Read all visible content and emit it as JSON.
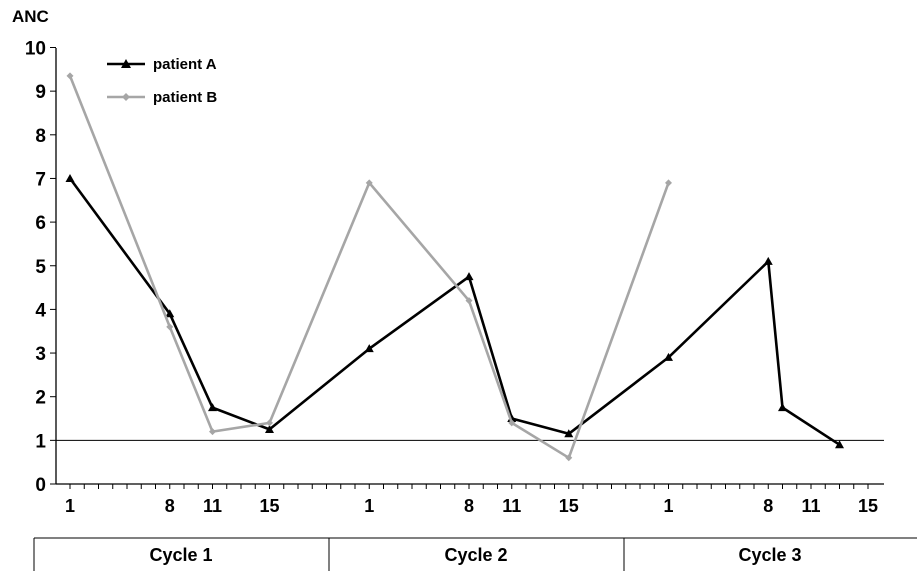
{
  "chart_data": {
    "type": "line",
    "ylabel": "ANC",
    "ylim": [
      0,
      10
    ],
    "yticks": [
      "0",
      "1",
      "2",
      "3",
      "4",
      "5",
      "6",
      "7",
      "8",
      "9",
      "10"
    ],
    "threshold": 1,
    "xtick_labels": [
      "1",
      "8",
      "11",
      "15",
      "1",
      "8",
      "11",
      "15",
      "1",
      "8",
      "11",
      "15"
    ],
    "xtick_days": [
      1,
      8,
      11,
      15,
      22,
      29,
      32,
      36,
      43,
      50,
      53,
      57
    ],
    "x_day_range": [
      1,
      57
    ],
    "cycles": [
      "Cycle 1",
      "Cycle 2",
      "Cycle 3"
    ],
    "legend_position": "top-left",
    "series": [
      {
        "name": "patient A",
        "color": "#000000",
        "marker": "triangle",
        "points": [
          {
            "day": 1,
            "value": 7.0
          },
          {
            "day": 8,
            "value": 3.9
          },
          {
            "day": 11,
            "value": 1.75
          },
          {
            "day": 15,
            "value": 1.25
          },
          {
            "day": 22,
            "value": 3.1
          },
          {
            "day": 29,
            "value": 4.75
          },
          {
            "day": 32,
            "value": 1.5
          },
          {
            "day": 36,
            "value": 1.15
          },
          {
            "day": 43,
            "value": 2.9
          },
          {
            "day": 50,
            "value": 5.1
          },
          {
            "day": 51,
            "value": 1.75
          },
          {
            "day": 55,
            "value": 0.9
          }
        ]
      },
      {
        "name": "patient B",
        "color": "#a6a6a6",
        "marker": "diamond",
        "points": [
          {
            "day": 1,
            "value": 9.35
          },
          {
            "day": 8,
            "value": 3.6
          },
          {
            "day": 11,
            "value": 1.2
          },
          {
            "day": 15,
            "value": 1.4
          },
          {
            "day": 22,
            "value": 6.9
          },
          {
            "day": 29,
            "value": 4.2
          },
          {
            "day": 32,
            "value": 1.4
          },
          {
            "day": 36,
            "value": 0.6
          },
          {
            "day": 43,
            "value": 6.9
          }
        ]
      }
    ]
  }
}
